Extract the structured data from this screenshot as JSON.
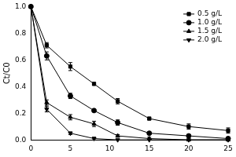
{
  "chart_data": {
    "type": "line",
    "y_label": "Ct/C0",
    "x": [
      0,
      2,
      5,
      8,
      11,
      15,
      20,
      25
    ],
    "series": [
      {
        "name": "0.5 g/L",
        "color": "#000000",
        "marker": "square",
        "values": [
          1.0,
          0.71,
          0.55,
          0.42,
          0.29,
          0.16,
          0.1,
          0.07
        ],
        "errors": [
          0.0,
          0.02,
          0.03,
          0.01,
          0.02,
          0.01,
          0.02,
          0.02
        ]
      },
      {
        "name": "1.0 g/L",
        "color": "#000000",
        "marker": "circle",
        "values": [
          1.0,
          0.63,
          0.33,
          0.22,
          0.13,
          0.05,
          0.03,
          0.01
        ],
        "errors": [
          0.0,
          0.03,
          0.02,
          0.01,
          0.02,
          0.01,
          0.01,
          0.01
        ]
      },
      {
        "name": "1.5 g/L",
        "color": "#000000",
        "marker": "triangle",
        "values": [
          1.0,
          0.28,
          0.17,
          0.12,
          0.03,
          0.01,
          0.0,
          0.0
        ],
        "errors": [
          0.0,
          0.02,
          0.02,
          0.02,
          0.01,
          0.01,
          0.0,
          0.0
        ]
      },
      {
        "name": "2.0 g/L",
        "color": "#000000",
        "marker": "inverted_triangle",
        "values": [
          1.0,
          0.23,
          0.05,
          0.01,
          0.0,
          0.0,
          0.0,
          0.0
        ],
        "errors": [
          0.0,
          0.02,
          0.01,
          0.01,
          0.0,
          0.0,
          0.0,
          0.0
        ]
      }
    ],
    "xlim": [
      0,
      25
    ],
    "xticks": [
      0,
      5,
      10,
      15,
      20,
      25
    ],
    "ylim": [
      0,
      1
    ],
    "yticks": [
      {
        "value": 0,
        "label": "0.0"
      },
      0.2,
      0.4,
      0.6,
      0.8,
      {
        "value": 1,
        "label": "1.0"
      }
    ],
    "grid": false,
    "legend": "upper right"
  }
}
